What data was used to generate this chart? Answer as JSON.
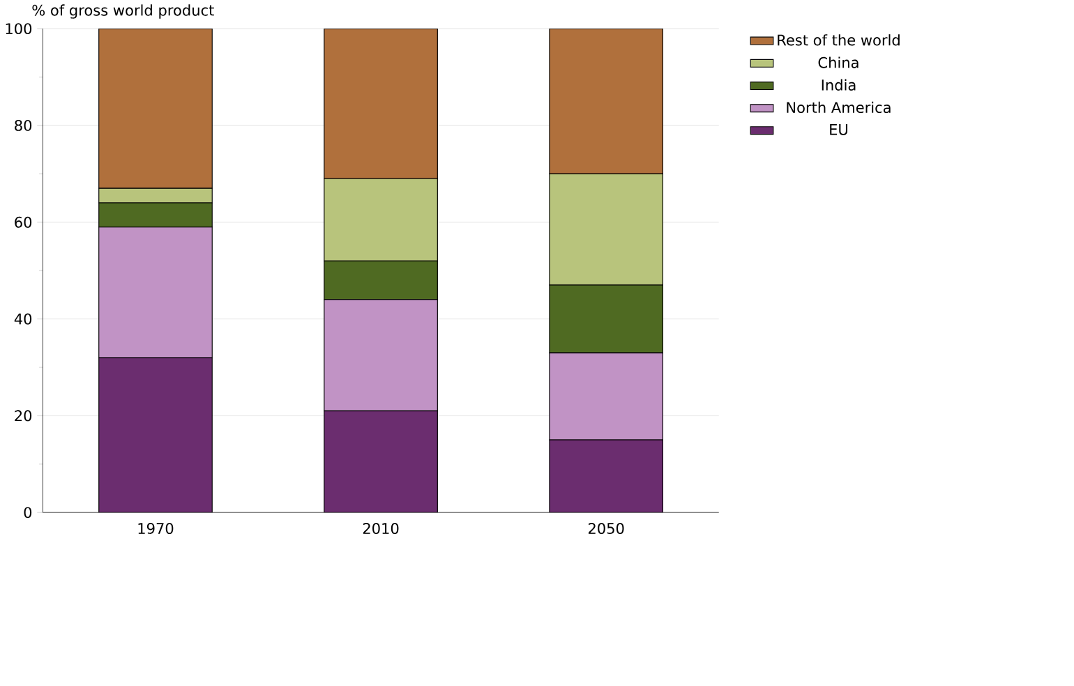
{
  "chart_data": {
    "type": "bar",
    "stacked": true,
    "ylabel": "% of gross world product",
    "categories": [
      "1970",
      "2010",
      "2050"
    ],
    "ylim": [
      0,
      100
    ],
    "yticks": [
      0,
      20,
      40,
      60,
      80,
      100
    ],
    "grid": "y",
    "legend": "top right",
    "series": [
      {
        "name": "EU",
        "color": "#6b2d6f",
        "values": [
          32,
          21,
          15
        ]
      },
      {
        "name": "North America",
        "color": "#c193c5",
        "values": [
          27,
          23,
          18
        ]
      },
      {
        "name": "India",
        "color": "#4f6a22",
        "values": [
          5,
          8,
          14
        ]
      },
      {
        "name": "China",
        "color": "#b8c47c",
        "values": [
          3,
          17,
          23
        ]
      },
      {
        "name": "Rest of the world",
        "color": "#b0703c",
        "values": [
          33,
          31,
          30
        ]
      }
    ]
  }
}
